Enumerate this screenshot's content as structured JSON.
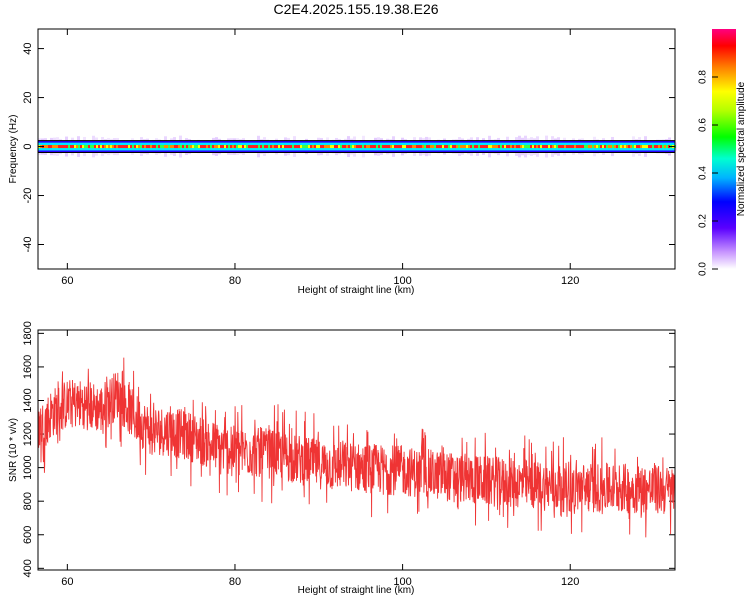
{
  "title": "C2E4.2025.155.19.38.E26",
  "chart_data": [
    {
      "type": "heatmap",
      "xlabel": "Height of straight line (km)",
      "ylabel": "Frequency (Hz)",
      "xlim": [
        56.5,
        132.5
      ],
      "ylim": [
        -50,
        48
      ],
      "xticks": [
        60,
        80,
        100,
        120
      ],
      "yticks": [
        40,
        20,
        0,
        -20,
        -40
      ],
      "colorbar": {
        "label": "Normalized spectral amplitude",
        "range": [
          0,
          1
        ],
        "ticks": [
          0.0,
          0.2,
          0.4,
          0.6,
          0.8
        ]
      },
      "band_center_hz": 0,
      "band_halfwidth_hz": 2
    },
    {
      "type": "line",
      "xlabel": "Height of straight line (km)",
      "ylabel": "SNR (10 * v/v)",
      "xlim": [
        56.5,
        132.5
      ],
      "ylim": [
        390,
        1820
      ],
      "xticks": [
        60,
        80,
        100,
        120
      ],
      "yticks": [
        400,
        600,
        800,
        1000,
        1200,
        1400,
        1600,
        1800
      ],
      "color": "#ef3434",
      "series": [
        {
          "x": [
            57,
            58,
            60,
            62,
            64,
            66,
            68,
            70,
            72,
            75,
            78,
            80,
            85,
            90,
            95,
            100,
            105,
            110,
            115,
            120,
            125,
            130,
            132
          ],
          "values": [
            1250,
            1320,
            1380,
            1380,
            1350,
            1440,
            1300,
            1220,
            1220,
            1180,
            1120,
            1100,
            1080,
            1020,
            1000,
            980,
            950,
            920,
            900,
            880,
            880,
            870,
            860
          ]
        }
      ]
    }
  ]
}
